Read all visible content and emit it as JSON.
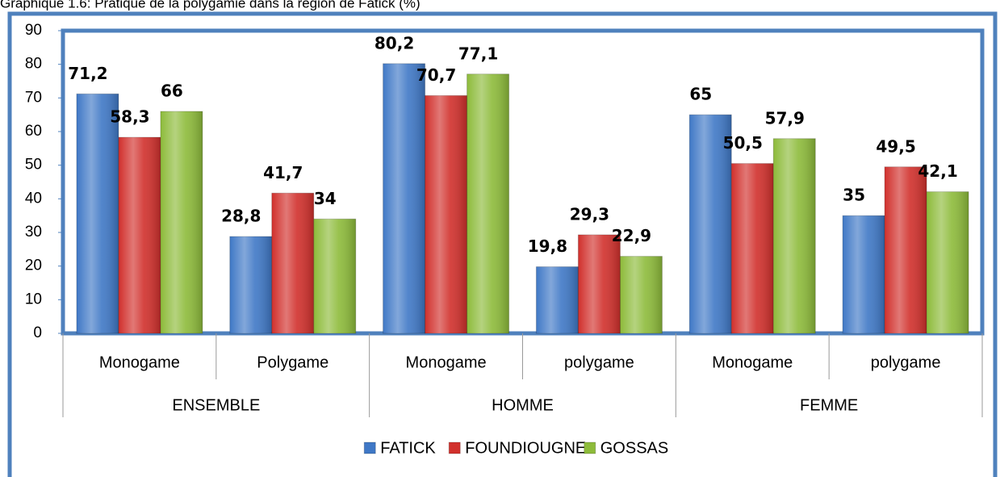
{
  "chart_data": {
    "type": "bar",
    "title": "Graphique 1.6: Pratique de la polygamie dans la région de Fatick (%)",
    "categories": [
      "Monogame",
      "Polygame",
      "Monogame",
      "polygame",
      "Monogame",
      "polygame"
    ],
    "groups": [
      "ENSEMBLE",
      "HOMME",
      "FEMME"
    ],
    "series": [
      {
        "name": "FATICK",
        "color": "#3f78c6",
        "values": [
          71.2,
          28.8,
          80.2,
          19.8,
          65,
          35
        ],
        "value_labels": [
          "71,2",
          "28,8",
          "80,2",
          "19,8",
          "65",
          "35"
        ]
      },
      {
        "name": "FOUNDIOUGNE",
        "color": "#d1302c",
        "values": [
          58.3,
          41.7,
          70.7,
          29.3,
          50.5,
          49.5
        ],
        "value_labels": [
          "58,3",
          "41,7",
          "70,7",
          "29,3",
          "50,5",
          "49,5"
        ]
      },
      {
        "name": "GOSSAS",
        "color": "#8dbb3a",
        "values": [
          66,
          34,
          77.1,
          22.9,
          57.9,
          42.1
        ],
        "value_labels": [
          "66",
          "34",
          "77,1",
          "22,9",
          "57,9",
          "42,1"
        ]
      }
    ],
    "ylim": [
      0,
      90
    ],
    "yticks": [
      0,
      10,
      20,
      30,
      40,
      50,
      60,
      70,
      80,
      90
    ],
    "grid": false,
    "legend": "bottom"
  }
}
